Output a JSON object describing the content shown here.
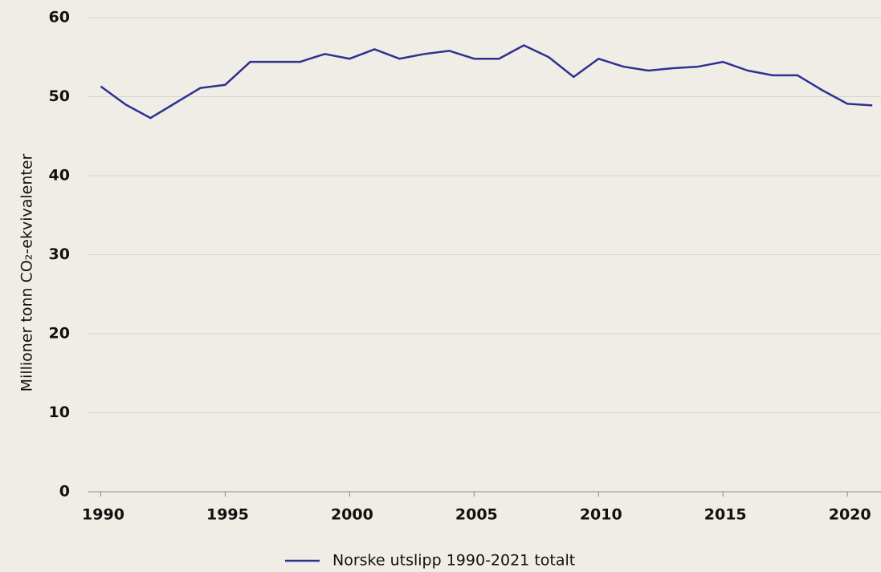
{
  "chart_data": {
    "type": "line",
    "y_label": "Millioner tonn CO₂-ekvivalenter",
    "x": [
      1990,
      1991,
      1992,
      1993,
      1994,
      1995,
      1996,
      1997,
      1998,
      1999,
      2000,
      2001,
      2002,
      2003,
      2004,
      2005,
      2006,
      2007,
      2008,
      2009,
      2010,
      2011,
      2012,
      2013,
      2014,
      2015,
      2016,
      2017,
      2018,
      2019,
      2020,
      2021
    ],
    "series": [
      {
        "name": "Norske utslipp 1990-2021 totalt",
        "color": "#2e3190",
        "values": [
          51.3,
          49.0,
          47.3,
          49.2,
          51.1,
          51.5,
          54.4,
          54.4,
          54.4,
          55.4,
          54.8,
          56.0,
          54.8,
          55.4,
          55.8,
          54.8,
          54.8,
          56.5,
          55.0,
          52.5,
          54.8,
          53.8,
          53.3,
          53.6,
          53.8,
          54.4,
          53.3,
          52.7,
          52.7,
          50.8,
          49.1,
          48.9
        ]
      }
    ],
    "xlim": [
      1989.5,
      2021.35
    ],
    "xticks": [
      1990,
      1995,
      2000,
      2005,
      2010,
      2015,
      2020
    ],
    "ylim": [
      0,
      60
    ],
    "yticks": [
      0,
      10,
      20,
      30,
      40,
      50,
      60
    ],
    "grid": true,
    "legend": "bottom"
  }
}
